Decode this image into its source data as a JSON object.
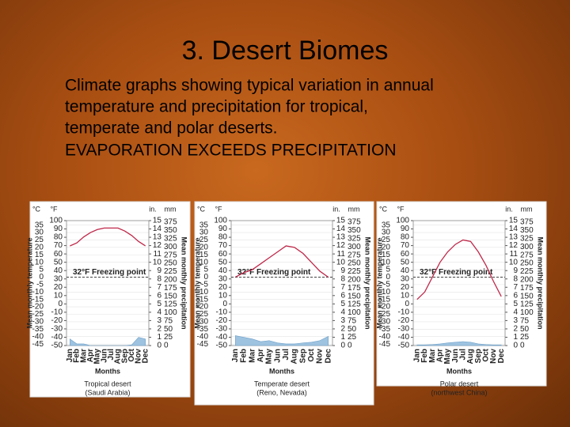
{
  "header": {
    "title": "3. Desert Biomes",
    "body": [
      "Climate graphs showing typical variation in annual",
      "temperature and precipitation for tropical,",
      "temperate and polar deserts.",
      "EVAPORATION EXCEEDS PRECIPITATION"
    ]
  },
  "chart_data": [
    {
      "type": "line",
      "title": "Tropical desert",
      "subtitle": "(Saudi Arabia)",
      "x_label": "Months",
      "y_label": "Mean monthly temperature",
      "y2_label": "Mean monthly precipitation",
      "y_unit": "°C",
      "f_unit": "°F",
      "in_unit": "in.",
      "y2_unit": "mm",
      "annotation": "32°F Freezing point",
      "freezing_point": 0,
      "categories": [
        "Jan",
        "Feb",
        "Mar",
        "Apr",
        "May",
        "Jun",
        "Jul",
        "Aug",
        "Sep",
        "Oct",
        "Nov",
        "Dec"
      ],
      "series": [
        {
          "color": "#c0284a",
          "values": [
            21,
            23,
            27,
            30,
            32,
            33,
            33,
            33,
            31,
            28,
            24,
            21
          ]
        },
        {
          "color": "#9ec3e0",
          "axis": "y2",
          "values": [
            20,
            5,
            5,
            0,
            0,
            0,
            0,
            0,
            0,
            2,
            25,
            20
          ]
        }
      ],
      "ylim": [
        -46,
        38
      ],
      "yticks": [
        35,
        30,
        25,
        20,
        15,
        10,
        5,
        0,
        -5,
        -10,
        -15,
        -20,
        -25,
        -30,
        -35,
        -40,
        -45
      ],
      "f_lim": [
        -50,
        100
      ],
      "f_ticks": [
        100,
        90,
        80,
        70,
        60,
        50,
        40,
        30,
        20,
        10,
        0,
        -10,
        -20,
        -30,
        -40,
        -50
      ],
      "in_lim": [
        0,
        15
      ],
      "in_ticks": [
        15,
        14,
        13,
        12,
        11,
        10,
        9,
        8,
        7,
        6,
        5,
        4,
        3,
        2,
        1,
        0
      ],
      "y2lim": [
        0,
        380
      ],
      "y2ticks": [
        375,
        350,
        325,
        300,
        275,
        250,
        225,
        200,
        175,
        150,
        125,
        100,
        75,
        50,
        25,
        0
      ]
    },
    {
      "type": "line",
      "title": "Temperate desert",
      "subtitle": "(Reno, Nevada)",
      "x_label": "Months",
      "y_label": "Mean monthly temperature",
      "y2_label": "Mean monthly precipitation",
      "y_unit": "°C",
      "f_unit": "°F",
      "in_unit": "in.",
      "y2_unit": "mm",
      "annotation": "32°F Freezing point",
      "freezing_point": 0,
      "categories": [
        "Jan",
        "Feb",
        "Mar",
        "Apr",
        "May",
        "Jun",
        "Jul",
        "Aug",
        "Sep",
        "Oct",
        "Nov",
        "Dec"
      ],
      "series": [
        {
          "color": "#c0284a",
          "values": [
            0,
            3,
            5,
            9,
            13,
            17,
            21,
            20,
            16,
            10,
            4,
            0
          ]
        },
        {
          "color": "#9ec3e0",
          "axis": "y2",
          "values": [
            30,
            25,
            20,
            12,
            15,
            8,
            5,
            5,
            8,
            10,
            15,
            28
          ]
        }
      ],
      "ylim": [
        -46,
        38
      ],
      "yticks": [
        35,
        30,
        25,
        20,
        15,
        10,
        5,
        0,
        -5,
        -10,
        -15,
        -20,
        -25,
        -30,
        -35,
        -40,
        -45
      ],
      "f_lim": [
        -50,
        100
      ],
      "f_ticks": [
        100,
        90,
        80,
        70,
        60,
        50,
        40,
        30,
        20,
        10,
        0,
        -10,
        -20,
        -30,
        -40,
        -50
      ],
      "in_lim": [
        0,
        15
      ],
      "in_ticks": [
        15,
        14,
        13,
        12,
        11,
        10,
        9,
        8,
        7,
        6,
        5,
        4,
        3,
        2,
        1,
        0
      ],
      "y2lim": [
        0,
        380
      ],
      "y2ticks": [
        375,
        350,
        325,
        300,
        275,
        250,
        225,
        200,
        175,
        150,
        125,
        100,
        75,
        50,
        25,
        0
      ]
    },
    {
      "type": "line",
      "title": "Polar desert",
      "subtitle": "(northwest China)",
      "x_label": "Months",
      "y_label": "Mean monthly temperature",
      "y2_label": "Mean monthly precipitation",
      "y_unit": "°C",
      "f_unit": "°F",
      "in_unit": "in.",
      "y2_unit": "mm",
      "annotation": "32°F Freezing point",
      "freezing_point": 0,
      "categories": [
        "Jan",
        "Feb",
        "Mar",
        "Apr",
        "May",
        "Jun",
        "Jul",
        "Aug",
        "Sep",
        "Oct",
        "Nov",
        "Dec"
      ],
      "series": [
        {
          "color": "#c0284a",
          "values": [
            -15,
            -10,
            0,
            10,
            17,
            22,
            25,
            24,
            17,
            8,
            -3,
            -13
          ]
        },
        {
          "color": "#9ec3e0",
          "axis": "y2",
          "values": [
            2,
            2,
            3,
            5,
            8,
            10,
            12,
            10,
            5,
            3,
            2,
            2
          ]
        }
      ],
      "ylim": [
        -46,
        38
      ],
      "yticks": [
        35,
        30,
        25,
        20,
        15,
        10,
        5,
        0,
        -5,
        -10,
        -15,
        -20,
        -25,
        -30,
        -35,
        -40,
        -45
      ],
      "f_lim": [
        -50,
        100
      ],
      "f_ticks": [
        100,
        90,
        80,
        70,
        60,
        50,
        40,
        30,
        20,
        10,
        0,
        -10,
        -20,
        -30,
        -40,
        -50
      ],
      "in_lim": [
        0,
        15
      ],
      "in_ticks": [
        15,
        14,
        13,
        12,
        11,
        10,
        9,
        8,
        7,
        6,
        5,
        4,
        3,
        2,
        1,
        0
      ],
      "y2lim": [
        0,
        380
      ],
      "y2ticks": [
        375,
        350,
        325,
        300,
        275,
        250,
        225,
        200,
        175,
        150,
        125,
        100,
        75,
        50,
        25,
        0
      ]
    }
  ]
}
